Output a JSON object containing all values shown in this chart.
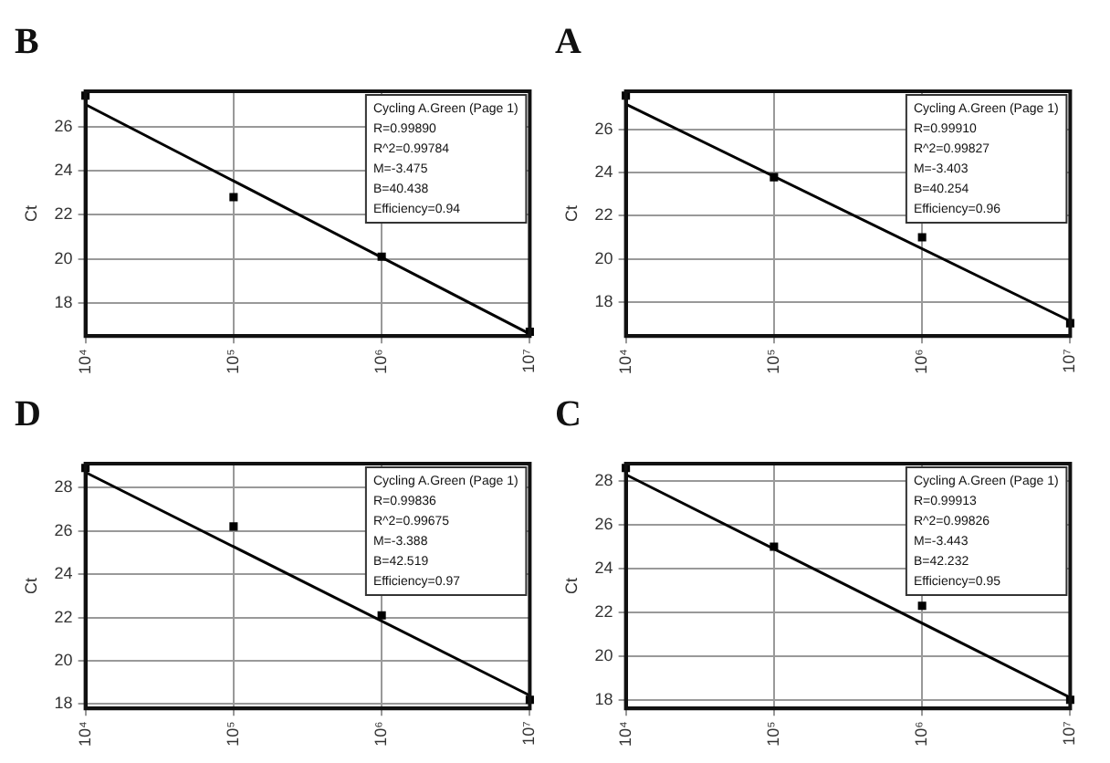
{
  "chart_data": [
    {
      "type": "scatter",
      "title": "B",
      "ylabel": "Ct",
      "log": "x",
      "xlim": [
        10000,
        10000000
      ],
      "xticks": [
        {
          "value": 10000,
          "label": "10⁴"
        },
        {
          "value": 100000,
          "label": "10⁵"
        },
        {
          "value": 1000000,
          "label": "10⁶"
        },
        {
          "value": 10000000,
          "label": "10⁷"
        }
      ],
      "ylim": [
        16.5,
        27.6
      ],
      "yticks": [
        18,
        20,
        22,
        24,
        26
      ],
      "grid": true,
      "annotations": [
        "Cycling A.Green (Page 1)",
        "R=0.99890",
        "R^2=0.99784",
        "M=-3.475",
        "B=40.438",
        "Efficiency=0.94"
      ],
      "series": [
        {
          "x": [
            10000,
            100000,
            1000000,
            10000000
          ],
          "values": [
            27.4,
            22.8,
            20.1,
            16.7
          ],
          "color": "#000000",
          "marker": "square"
        },
        {
          "type": "line",
          "x": [
            10000,
            10000000
          ],
          "values": [
            27.0,
            16.6
          ],
          "color": "#000000",
          "marker": "none"
        }
      ]
    },
    {
      "type": "scatter",
      "title": "A",
      "ylabel": "Ct",
      "log": "x",
      "xlim": [
        10000,
        10000000
      ],
      "xticks": [
        {
          "value": 10000,
          "label": "10⁴"
        },
        {
          "value": 100000,
          "label": "10⁵"
        },
        {
          "value": 1000000,
          "label": "10⁶"
        },
        {
          "value": 10000000,
          "label": "10⁷"
        }
      ],
      "ylim": [
        16.4,
        27.8
      ],
      "yticks": [
        18,
        20,
        22,
        24,
        26
      ],
      "grid": true,
      "annotations": [
        "Cycling A.Green (Page 1)",
        "R=0.99910",
        "R^2=0.99827",
        "M=-3.403",
        "B=40.254",
        "Efficiency=0.96"
      ],
      "series": [
        {
          "x": [
            10000,
            100000,
            1000000,
            10000000
          ],
          "values": [
            27.6,
            23.8,
            21.0,
            17.0
          ],
          "color": "#000000",
          "marker": "square"
        },
        {
          "type": "line",
          "x": [
            10000,
            10000000
          ],
          "values": [
            27.2,
            17.1
          ],
          "color": "#000000",
          "marker": "none"
        }
      ]
    },
    {
      "type": "scatter",
      "title": "D",
      "ylabel": "Ct",
      "log": "x",
      "xlim": [
        10000,
        10000000
      ],
      "xticks": [
        {
          "value": 10000,
          "label": "10⁴"
        },
        {
          "value": 100000,
          "label": "10⁵"
        },
        {
          "value": 1000000,
          "label": "10⁶"
        },
        {
          "value": 10000000,
          "label": "10⁷"
        }
      ],
      "ylim": [
        17.8,
        29.1
      ],
      "yticks": [
        18,
        20,
        22,
        24,
        26,
        28
      ],
      "grid": true,
      "annotations": [
        "Cycling A.Green (Page 1)",
        "R=0.99836",
        "R^2=0.99675",
        "M=-3.388",
        "B=42.519",
        "Efficiency=0.97"
      ],
      "series": [
        {
          "x": [
            10000,
            100000,
            1000000,
            10000000
          ],
          "values": [
            28.9,
            26.2,
            22.1,
            18.2
          ],
          "color": "#000000",
          "marker": "square"
        },
        {
          "type": "line",
          "x": [
            10000,
            10000000
          ],
          "values": [
            28.7,
            18.4
          ],
          "color": "#000000",
          "marker": "none"
        }
      ]
    },
    {
      "type": "scatter",
      "title": "C",
      "ylabel": "Ct",
      "log": "x",
      "xlim": [
        10000,
        10000000
      ],
      "xticks": [
        {
          "value": 10000,
          "label": "10⁴"
        },
        {
          "value": 100000,
          "label": "10⁵"
        },
        {
          "value": 1000000,
          "label": "10⁶"
        },
        {
          "value": 10000000,
          "label": "10⁷"
        }
      ],
      "ylim": [
        17.6,
        28.8
      ],
      "yticks": [
        18,
        20,
        22,
        24,
        26,
        28
      ],
      "grid": true,
      "annotations": [
        "Cycling A.Green (Page 1)",
        "R=0.99913",
        "R^2=0.99826",
        "M=-3.443",
        "B=42.232",
        "Efficiency=0.95"
      ],
      "series": [
        {
          "x": [
            10000,
            100000,
            1000000,
            10000000
          ],
          "values": [
            28.6,
            25.0,
            22.3,
            18.0
          ],
          "color": "#000000",
          "marker": "square"
        },
        {
          "type": "line",
          "x": [
            10000,
            10000000
          ],
          "values": [
            28.3,
            18.1
          ],
          "color": "#000000",
          "marker": "none"
        }
      ]
    }
  ]
}
